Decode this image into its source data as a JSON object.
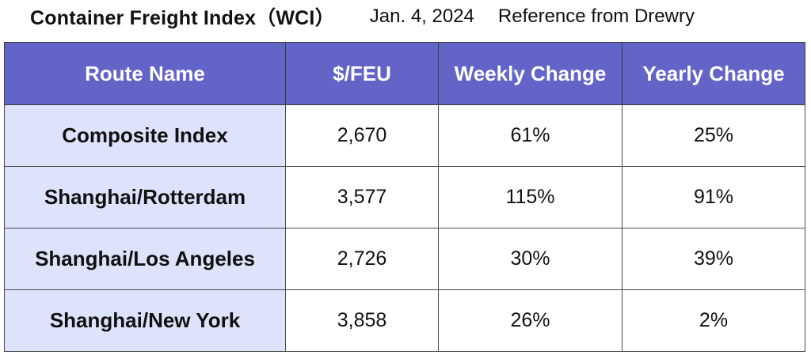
{
  "header": {
    "title": "Container Freight Index（WCI）",
    "date": "Jan. 4, 2024",
    "source": "Reference from Drewry"
  },
  "colors": {
    "header_bg": "#6264c8",
    "route_bg": "#dde3fb",
    "header_text": "#ffffff"
  },
  "chart_data": {
    "type": "table",
    "title": "Container Freight Index（WCI）",
    "columns": [
      "Route Name",
      "$/FEU",
      "Weekly Change",
      "Yearly Change"
    ],
    "rows": [
      [
        "Composite Index",
        "2,670",
        "61%",
        "25%"
      ],
      [
        "Shanghai/Rotterdam",
        "3,577",
        "115%",
        "91%"
      ],
      [
        "Shanghai/Los Angeles",
        "2,726",
        "30%",
        "39%"
      ],
      [
        "Shanghai/New York",
        "3,858",
        "26%",
        "2%"
      ]
    ]
  }
}
